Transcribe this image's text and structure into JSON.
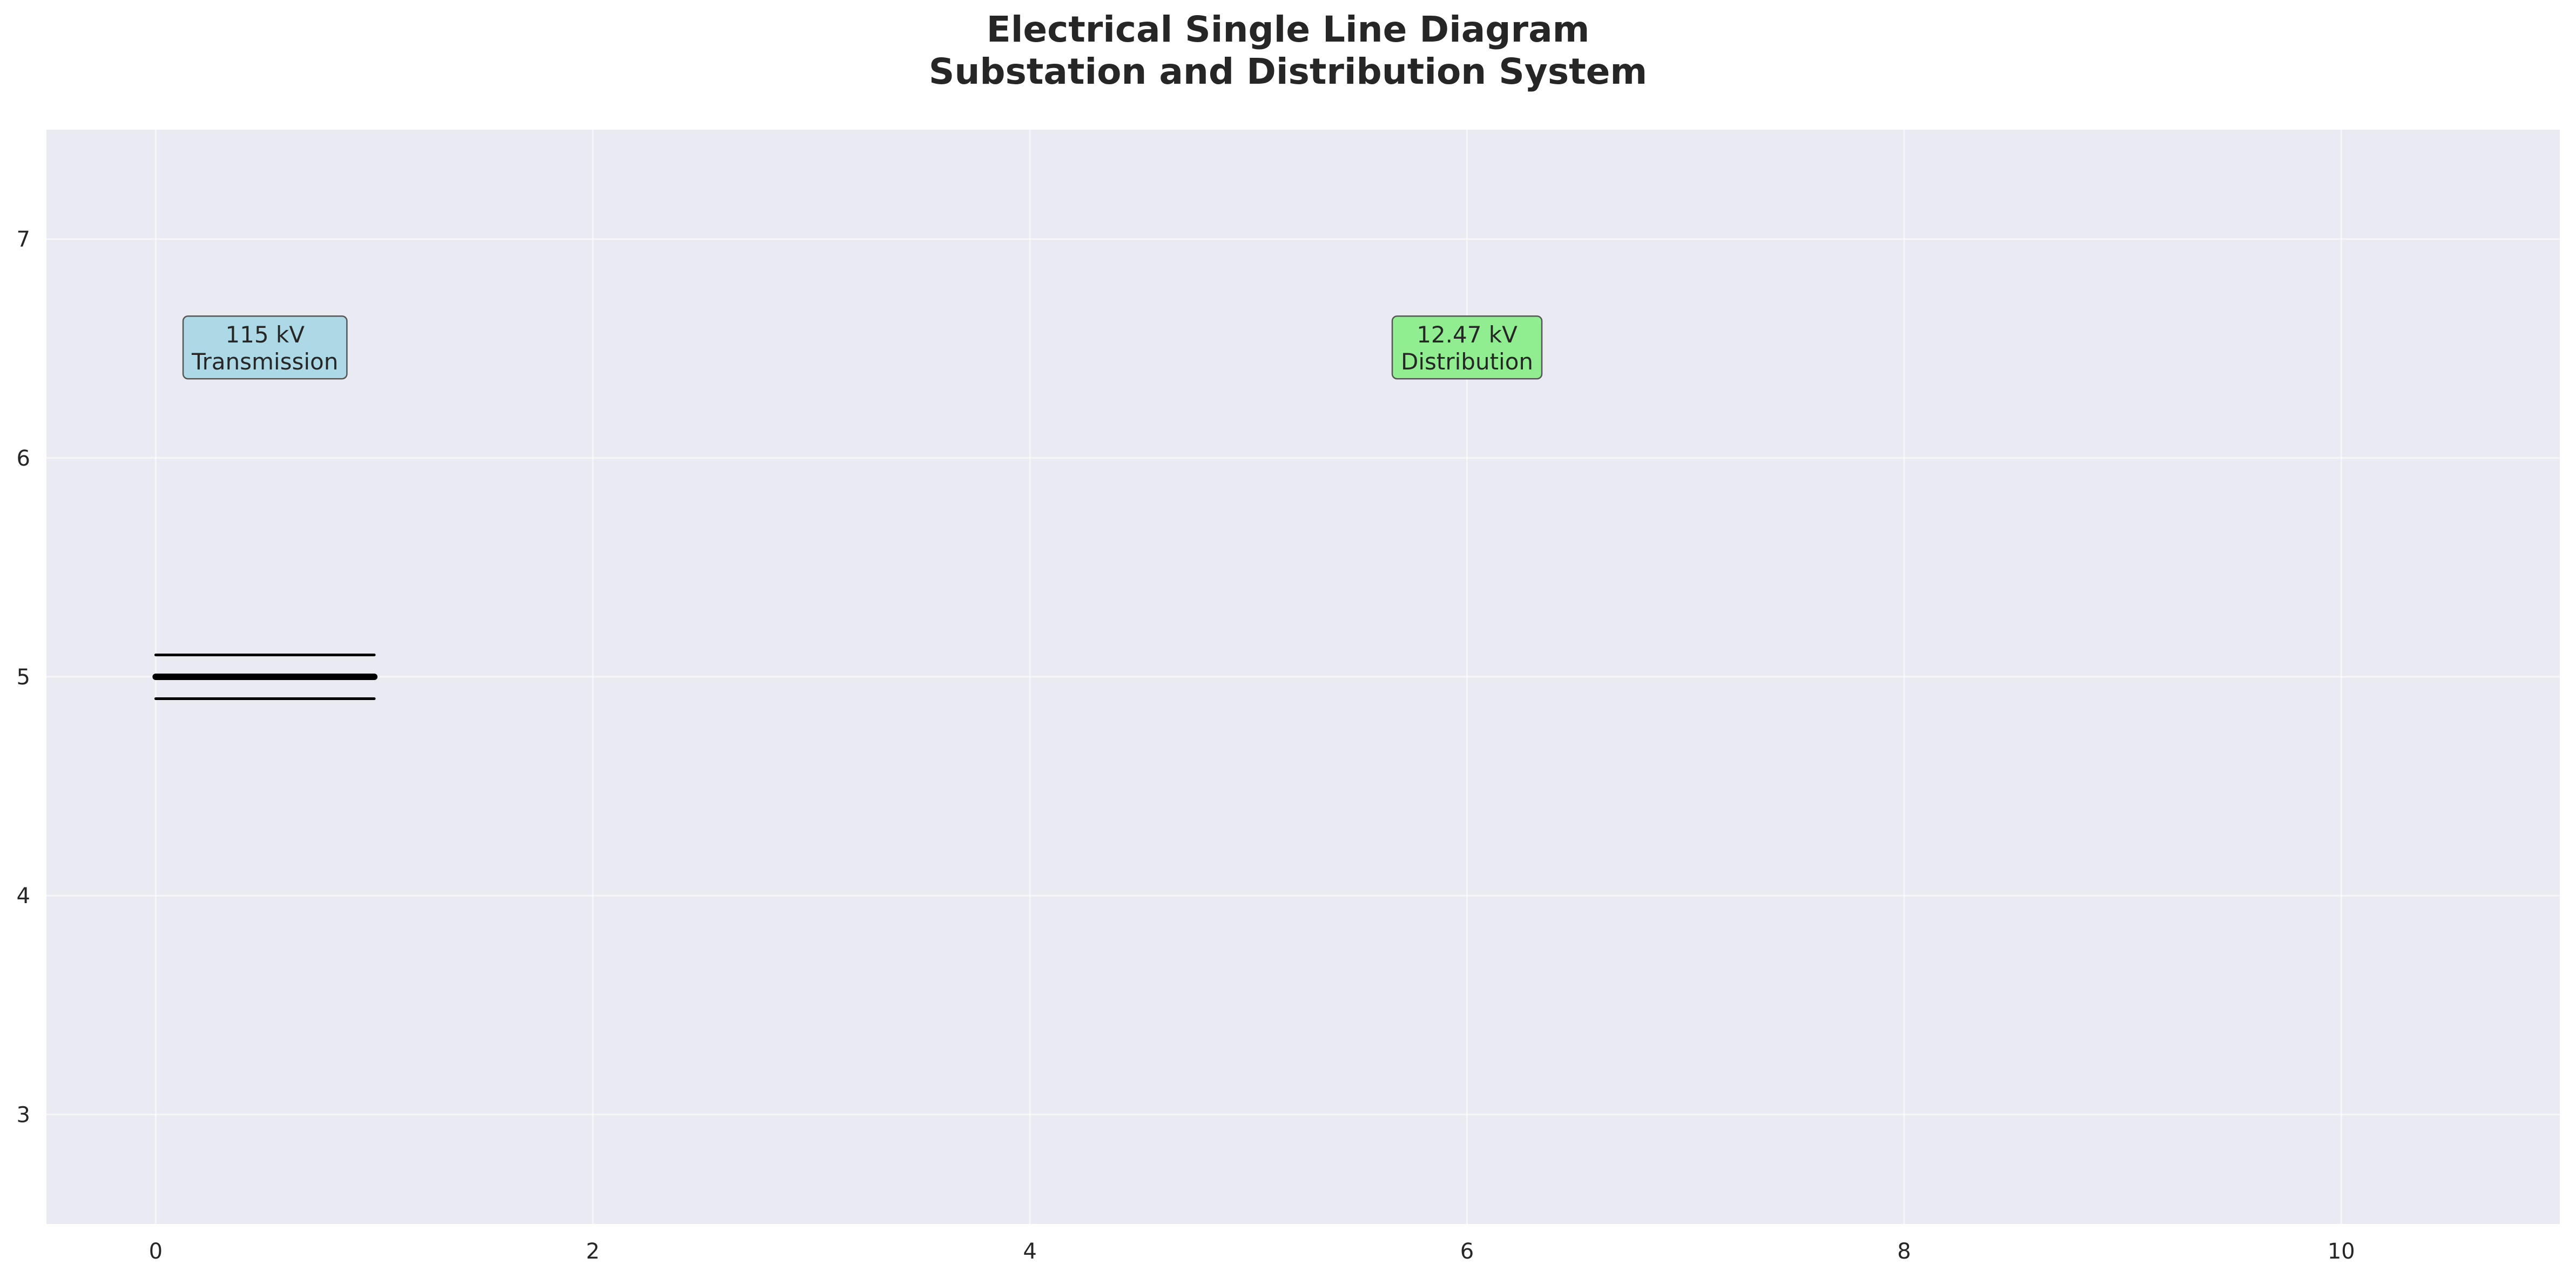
{
  "title": {
    "line1": "Electrical Single Line Diagram",
    "line2": "Substation and Distribution System"
  },
  "axes": {
    "xlim": [
      -0.5,
      11
    ],
    "ylim": [
      2.5,
      7.5
    ],
    "x_ticks": [
      0,
      2,
      4,
      6,
      8,
      10
    ],
    "y_ticks": [
      3,
      4,
      5,
      6,
      7
    ],
    "grid": true,
    "background": "#eaeaf2",
    "grid_color": "#ffffff"
  },
  "voltage_labels": [
    {
      "id": "transmission",
      "lines": [
        "115 kV",
        "Transmission"
      ],
      "x": 0.5,
      "y": 6.5,
      "fill": "#add8e6"
    },
    {
      "id": "distribution",
      "lines": [
        "12.47 kV",
        "Distribution"
      ],
      "x": 6.0,
      "y": 6.5,
      "fill": "#90ee90"
    }
  ],
  "busbar": {
    "x_start": 0,
    "x_end": 1,
    "y_main": 5.0,
    "y_upper": 5.1,
    "y_lower": 4.9,
    "color": "#000000"
  }
}
